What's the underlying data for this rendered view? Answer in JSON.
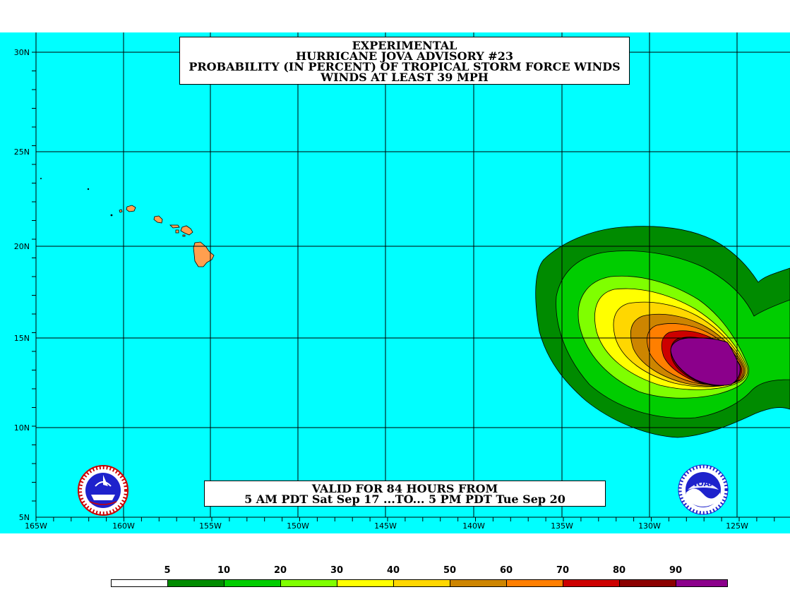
{
  "title": {
    "line1": "EXPERIMENTAL",
    "line2": "HURRICANE JOVA ADVISORY #23",
    "line3": "PROBABILITY (IN PERCENT) OF TROPICAL STORM FORCE WINDS",
    "line4": "WINDS AT LEAST 39 MPH"
  },
  "valid": {
    "line1": "VALID FOR 84 HOURS FROM",
    "line2": "5 AM PDT Sat Sep 17 ...TO... 5 PM PDT Tue Sep 20"
  },
  "lat_labels": [
    "30N",
    "25N",
    "20N",
    "15N",
    "10N",
    "5N"
  ],
  "lon_labels": [
    "165W",
    "160W",
    "155W",
    "150W",
    "145W",
    "140W",
    "135W",
    "130W",
    "125W"
  ],
  "legend": {
    "labels": [
      "5",
      "10",
      "20",
      "30",
      "40",
      "50",
      "60",
      "70",
      "80",
      "90"
    ],
    "colors": [
      "#ffffff",
      "#008b00",
      "#00cd00",
      "#7fff00",
      "#ffff00",
      "#ffd700",
      "#cd8500",
      "#ff7f00",
      "#cd0000",
      "#8b0000",
      "#8b008b"
    ]
  },
  "colors": {
    "ocean": "#00ffff",
    "land": "#ff9f4f"
  },
  "logos": {
    "left": "nws-logo",
    "right": "noaa-logo",
    "noaa_text": "NOAA"
  }
}
